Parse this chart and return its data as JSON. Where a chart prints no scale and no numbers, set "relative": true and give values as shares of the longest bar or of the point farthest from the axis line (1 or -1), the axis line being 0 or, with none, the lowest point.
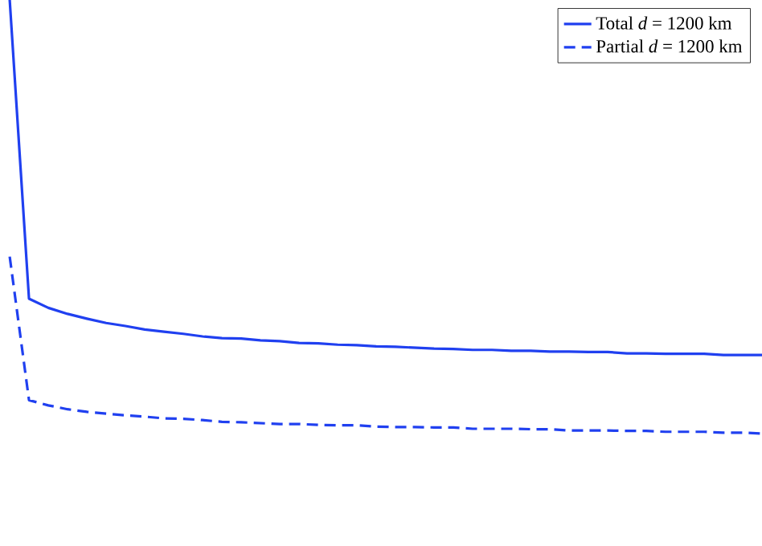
{
  "chart_data": {
    "type": "line",
    "relative": true,
    "legend": "top right",
    "marker": "none",
    "categories": [
      null,
      null,
      null,
      null,
      null,
      null,
      null,
      null,
      null,
      null,
      null,
      null,
      null,
      null,
      null,
      null,
      null,
      null,
      null,
      null,
      null,
      null,
      null,
      null,
      null,
      null,
      null,
      null,
      null,
      null,
      null,
      null,
      null,
      null,
      null,
      null,
      null,
      null,
      null,
      null
    ],
    "series": [
      {
        "name": "Total *d* = 1200 km",
        "color": "#2040f0",
        "line_style": "solid",
        "values": [
          1.0,
          0.311,
          0.29,
          0.276,
          0.265,
          0.255,
          0.248,
          0.24,
          0.235,
          0.23,
          0.224,
          0.22,
          0.219,
          0.215,
          0.213,
          0.209,
          0.208,
          0.205,
          0.204,
          0.201,
          0.2,
          0.198,
          0.196,
          0.195,
          0.193,
          0.193,
          0.191,
          0.191,
          0.189,
          0.189,
          0.188,
          0.188,
          0.185,
          0.185,
          0.184,
          0.184,
          0.184,
          0.181,
          0.181,
          0.181
        ]
      },
      {
        "name": "Partial *d* = 1200 km",
        "color": "#2040f0",
        "line_style": "dashed",
        "values": [
          0.408,
          0.077,
          0.065,
          0.056,
          0.05,
          0.046,
          0.042,
          0.039,
          0.035,
          0.034,
          0.031,
          0.027,
          0.026,
          0.024,
          0.022,
          0.022,
          0.02,
          0.019,
          0.019,
          0.016,
          0.015,
          0.015,
          0.014,
          0.014,
          0.011,
          0.011,
          0.011,
          0.01,
          0.01,
          0.007,
          0.007,
          0.007,
          0.006,
          0.006,
          0.004,
          0.004,
          0.004,
          0.002,
          0.002,
          0.0
        ]
      }
    ]
  }
}
